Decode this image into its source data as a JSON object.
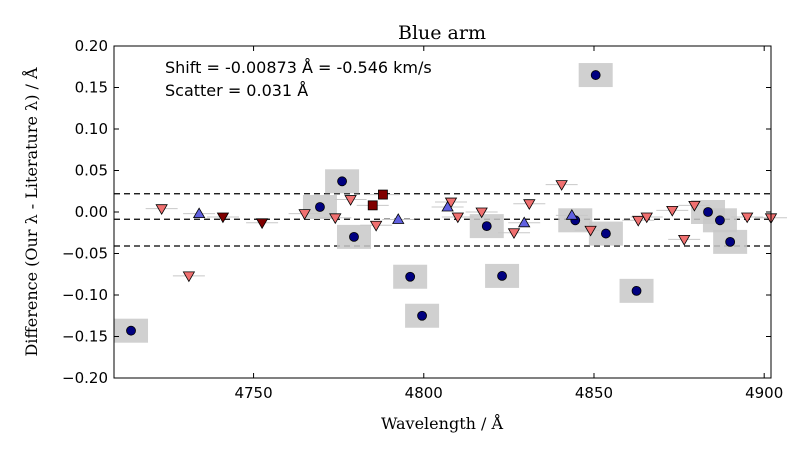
{
  "chart_data": {
    "type": "scatter",
    "title": "Blue arm",
    "xlabel": "Wavelength / Å",
    "ylabel": "Difference (Our λ - Literature λ) / Å",
    "xlim": [
      4709,
      4902
    ],
    "ylim": [
      -0.2,
      0.2
    ],
    "xticks": [
      4750,
      4800,
      4850,
      4900
    ],
    "xtick_labels": [
      "4750",
      "4800",
      "4850",
      "4900"
    ],
    "yticks": [
      -0.2,
      -0.15,
      -0.1,
      -0.05,
      0.0,
      0.05,
      0.1,
      0.15,
      0.2
    ],
    "ytick_labels": [
      "−0.20",
      "−0.15",
      "−0.10",
      "−0.05",
      "0.00",
      "0.05",
      "0.10",
      "0.15",
      "0.20"
    ],
    "annotations": [
      "Shift = -0.00873 Å = -0.546 km/s",
      "Scatter = 0.031 Å"
    ],
    "reference_lines": [
      {
        "name": "shift",
        "y": -0.0087
      },
      {
        "name": "upper-bound",
        "y": 0.022
      },
      {
        "name": "lower-bound",
        "y": -0.041
      }
    ],
    "colors": {
      "navy": "#000080",
      "salmon": "#f07070",
      "darkred": "#800000",
      "blue": "#6060e0",
      "box": "#c8c8c8"
    },
    "series": [
      {
        "name": "navy-circles",
        "marker": "circle",
        "color": "#000080",
        "boxed": true,
        "x": [
          4714,
          4769.5,
          4776,
          4779.5,
          4796,
          4799.5,
          4818.5,
          4823,
          4844.5,
          4850.5,
          4853.5,
          4862.5,
          4883.5,
          4887,
          4890
        ],
        "y": [
          -0.143,
          0.006,
          0.037,
          -0.03,
          -0.078,
          -0.125,
          -0.017,
          -0.077,
          -0.01,
          0.165,
          -0.026,
          -0.095,
          0.0,
          -0.01,
          -0.036
        ]
      },
      {
        "name": "salmon-down-triangles",
        "marker": "triangle-down",
        "color": "#f07070",
        "boxed": false,
        "x": [
          4723,
          4731,
          4765,
          4774,
          4778.5,
          4786,
          4808,
          4810,
          4817,
          4826.5,
          4831,
          4840.5,
          4849,
          4863,
          4865.5,
          4873,
          4876.5,
          4879.5,
          4895,
          4902
        ],
        "y": [
          0.004,
          -0.077,
          -0.002,
          -0.007,
          0.015,
          -0.016,
          0.012,
          -0.006,
          0.0,
          -0.025,
          0.01,
          0.033,
          -0.022,
          -0.01,
          -0.006,
          0.002,
          -0.033,
          0.008,
          -0.006,
          -0.007
        ]
      },
      {
        "name": "darkred-down-triangles",
        "marker": "triangle-down",
        "color": "#800000",
        "boxed": false,
        "x": [
          4741,
          4752.5
        ],
        "y": [
          -0.006,
          -0.013
        ]
      },
      {
        "name": "darkred-squares",
        "marker": "square",
        "color": "#800000",
        "boxed": false,
        "x": [
          4785,
          4788
        ],
        "y": [
          0.008,
          0.021
        ]
      },
      {
        "name": "blue-up-triangles",
        "marker": "triangle-up",
        "color": "#6060e0",
        "boxed": false,
        "x": [
          4734,
          4792.5,
          4807,
          4829.5,
          4843.5
        ],
        "y": [
          -0.002,
          -0.009,
          0.006,
          -0.013,
          -0.004
        ]
      }
    ]
  }
}
